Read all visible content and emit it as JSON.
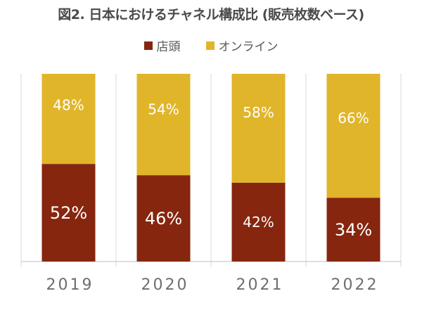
{
  "colors": {
    "store": "#86260f",
    "online": "#e0b52a",
    "grid": "#d9d9d9",
    "axis": "#bfbfbf"
  },
  "chart_data": {
    "type": "bar",
    "stacked": true,
    "title": "図2. 日本におけるチャネル構成比 (販売枚数ベース)",
    "categories": [
      "2019",
      "2020",
      "2021",
      "2022"
    ],
    "series": [
      {
        "name": "店頭",
        "color": "#86260f",
        "values": [
          52,
          46,
          42,
          34
        ],
        "labels": [
          "52%",
          "46%",
          "42%",
          "34%"
        ]
      },
      {
        "name": "オンライン",
        "color": "#e0b52a",
        "values": [
          48,
          54,
          58,
          66
        ],
        "labels": [
          "48%",
          "54%",
          "58%",
          "66%"
        ]
      }
    ],
    "ylim": [
      0,
      100
    ],
    "legend": "top-center",
    "grid": false
  }
}
